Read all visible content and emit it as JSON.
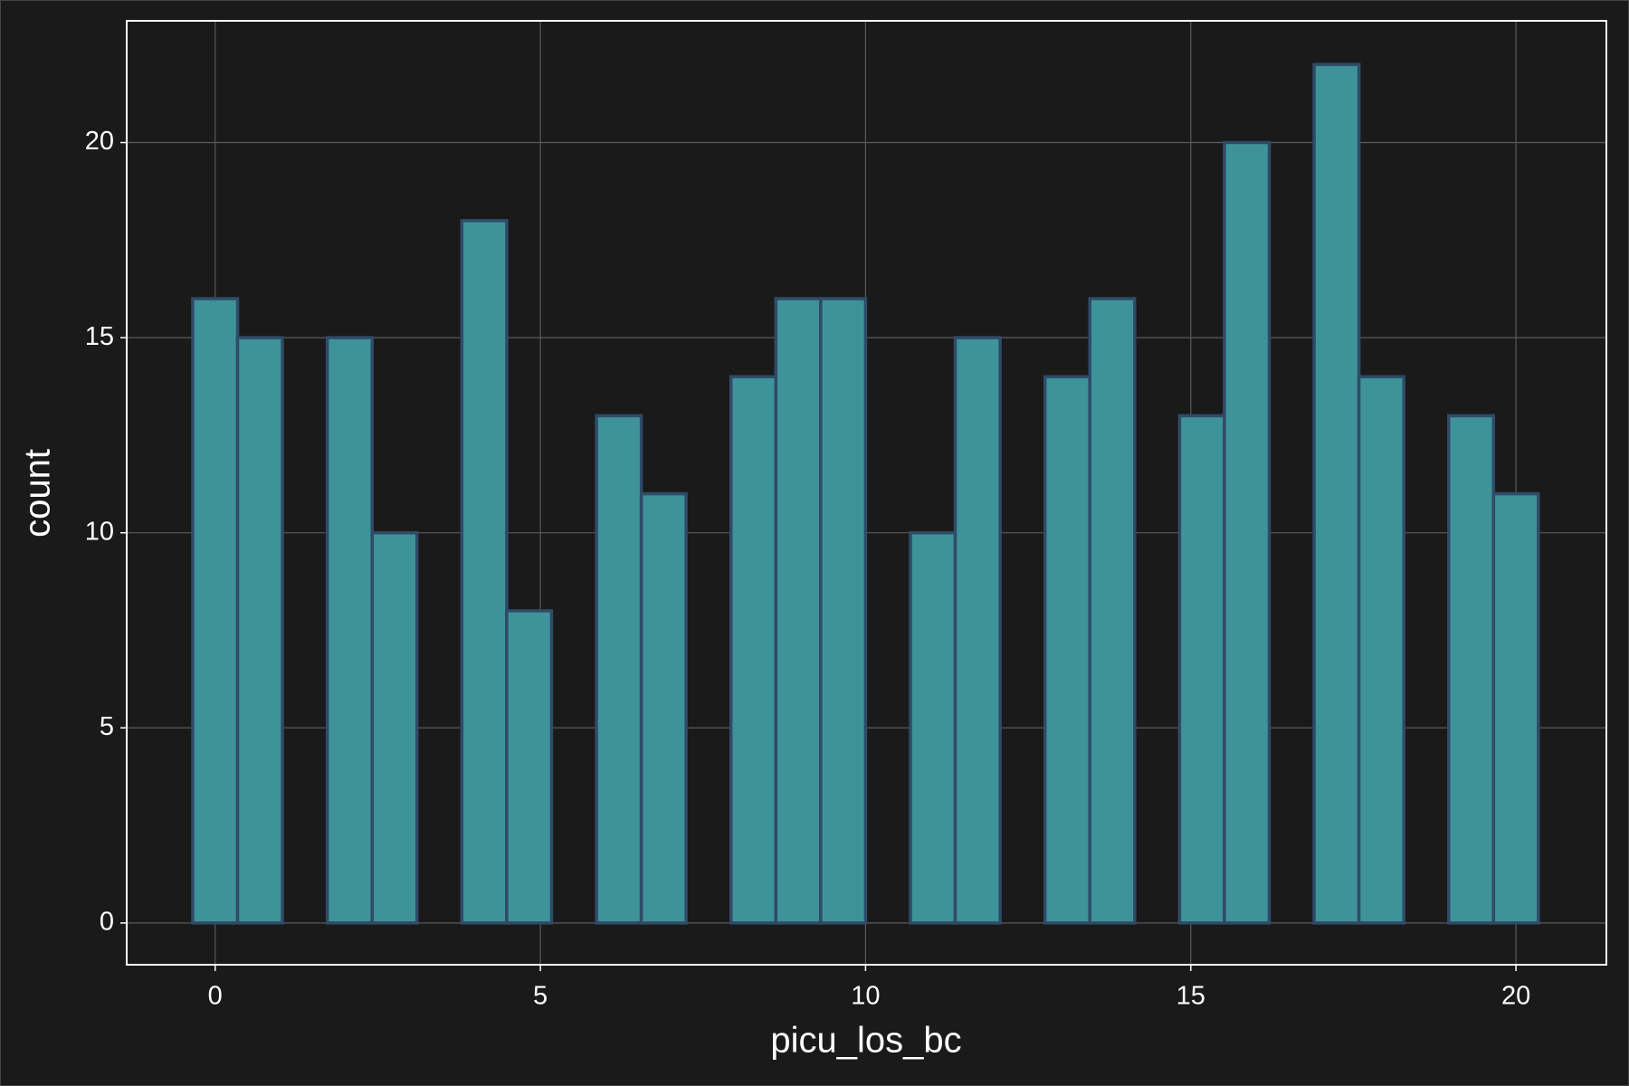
{
  "chart_data": {
    "type": "histogram",
    "x_label": "picu_los_bc",
    "y_label": "count",
    "bins": [
      -0.345,
      0.345,
      1.034,
      1.724,
      2.414,
      3.103,
      3.793,
      4.483,
      5.172,
      5.862,
      6.552,
      7.241,
      7.931,
      8.621,
      9.31,
      10.0,
      10.69,
      11.379,
      12.069,
      12.759,
      13.448,
      14.138,
      14.828,
      15.517,
      16.207,
      16.897,
      17.586,
      18.276,
      18.966,
      19.655,
      20.345
    ],
    "values": [
      16,
      15,
      0,
      15,
      10,
      0,
      18,
      8,
      0,
      13,
      11,
      0,
      14,
      16,
      16,
      0,
      10,
      15,
      0,
      14,
      16,
      0,
      13,
      20,
      0,
      22,
      14,
      0,
      13,
      11
    ],
    "color": "#3e9399",
    "edge_color": "#2f4b68",
    "xlim": [
      -1.36,
      21.39
    ],
    "ylim": [
      -1.07,
      23.12
    ],
    "xticks": [
      0,
      5,
      10,
      15,
      20
    ],
    "yticks": [
      0,
      5,
      10,
      15,
      20
    ],
    "grid": true
  }
}
